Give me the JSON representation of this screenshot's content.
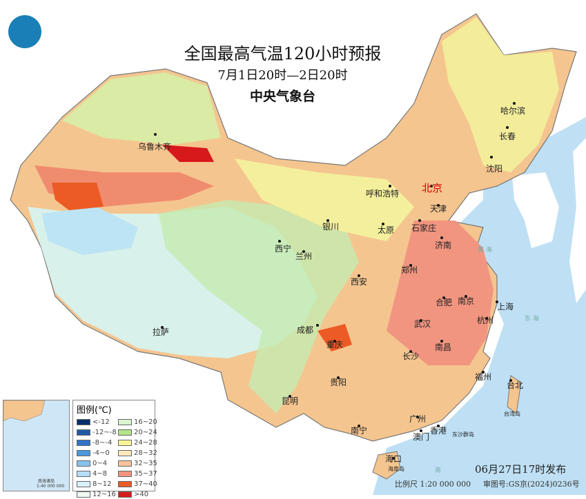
{
  "title": "全国最高气温120小时预报",
  "period": "7月1日20时—2日20时",
  "publisher": "中央气象台",
  "logo": "cma-logo",
  "cities": [
    {
      "name": "乌鲁木齐",
      "capital": false
    },
    {
      "name": "哈尔滨"
    },
    {
      "name": "长春"
    },
    {
      "name": "沈阳"
    },
    {
      "name": "呼和浩特"
    },
    {
      "name": "北京",
      "capital": true
    },
    {
      "name": "天津"
    },
    {
      "name": "石家庄"
    },
    {
      "name": "太原"
    },
    {
      "name": "银川"
    },
    {
      "name": "西宁"
    },
    {
      "name": "兰州"
    },
    {
      "name": "济南"
    },
    {
      "name": "郑州"
    },
    {
      "name": "西安"
    },
    {
      "name": "合肥"
    },
    {
      "name": "南京"
    },
    {
      "name": "上海"
    },
    {
      "name": "杭州"
    },
    {
      "name": "武汉"
    },
    {
      "name": "成都"
    },
    {
      "name": "重庆"
    },
    {
      "name": "拉萨"
    },
    {
      "name": "长沙"
    },
    {
      "name": "南昌"
    },
    {
      "name": "福州"
    },
    {
      "name": "台北"
    },
    {
      "name": "贵阳"
    },
    {
      "name": "昆明"
    },
    {
      "name": "南宁"
    },
    {
      "name": "广州"
    },
    {
      "name": "香港"
    },
    {
      "name": "澳门"
    },
    {
      "name": "海口"
    }
  ],
  "seas": {
    "yellow_sea": "黄 海",
    "east_sea": "东 海",
    "taiwan": "台湾岛",
    "dongsha": "东沙群岛",
    "hainan": "海南岛",
    "south": "南"
  },
  "legend": {
    "title": "图例(℃)",
    "items": [
      {
        "label": "<-12",
        "color": "#08306b"
      },
      {
        "label": "16~20",
        "color": "#d9f5d0"
      },
      {
        "label": "-12~-8",
        "color": "#1f5aa6"
      },
      {
        "label": "20~24",
        "color": "#b3e58a"
      },
      {
        "label": "-8~-4",
        "color": "#2f74c8"
      },
      {
        "label": "24~28",
        "color": "#fbf59a"
      },
      {
        "label": "-4~0",
        "color": "#4a98de"
      },
      {
        "label": "28~32",
        "color": "#fbe9bd"
      },
      {
        "label": "0~4",
        "color": "#86c2ee"
      },
      {
        "label": "32~35",
        "color": "#f9c39b"
      },
      {
        "label": "4~8",
        "color": "#b5def6"
      },
      {
        "label": "35~37",
        "color": "#f19580"
      },
      {
        "label": "8~12",
        "color": "#d9f1fb"
      },
      {
        "label": "37~40",
        "color": "#ec5a25"
      },
      {
        "label": "12~16",
        "color": "#eefaf0"
      },
      {
        "label": ">40",
        "color": "#d7191c"
      }
    ]
  },
  "inset": {
    "label": "南海诸岛",
    "scale": "1:40 000 000"
  },
  "issued": "06月27日17时发布",
  "scale": "比例尺 1:20 000 000",
  "map_no": "审图号:GS京(2024)0236号"
}
